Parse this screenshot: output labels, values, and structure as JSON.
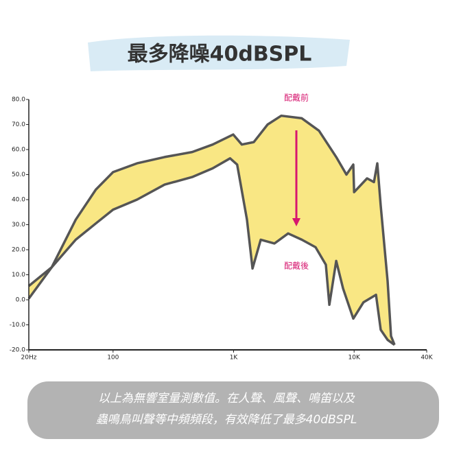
{
  "chart_data": {
    "type": "band",
    "title": "最多降噪40dBSPL",
    "series": [
      {
        "name": "配戴前",
        "color": "#555555",
        "x": [
          20,
          31,
          49,
          72,
          100,
          158,
          268,
          453,
          670,
          993,
          1170,
          1472,
          1914,
          2486,
          3680,
          5114,
          7100,
          8630,
          9840,
          10000,
          12800,
          14600,
          15570,
          16630,
          18960,
          20230,
          21630
        ],
        "values": [
          5.5,
          13,
          32,
          44,
          51,
          54.5,
          57,
          59,
          62,
          66,
          62,
          63,
          70,
          73.5,
          72.5,
          67.5,
          57,
          50,
          54,
          43,
          48.5,
          47,
          54.5,
          37.5,
          7.5,
          -14.5,
          -18
        ]
      },
      {
        "name": "配戴後",
        "color": "#555555",
        "x": [
          20,
          31,
          49,
          72,
          100,
          158,
          268,
          453,
          670,
          935,
          1070,
          1291,
          1435,
          1680,
          2183,
          2833,
          3680,
          4786,
          5826,
          6227,
          7100,
          8100,
          9840,
          11970,
          15180,
          16630,
          18960,
          21630
        ],
        "values": [
          0.5,
          13,
          24,
          30.5,
          36,
          40,
          46,
          49,
          52.5,
          56.5,
          54,
          32,
          12.5,
          24,
          22.5,
          26.5,
          24,
          21,
          14,
          -2,
          15.5,
          4.5,
          -7.5,
          -1,
          2,
          -12,
          -16,
          -18
        ]
      }
    ],
    "fill_color": "#f9e784",
    "arrow_color": "#d6176f",
    "log_x": true,
    "xlim": [
      20,
      40000
    ],
    "xticks": [
      {
        "value": 20,
        "label": "20Hz"
      },
      100,
      {
        "value": 1000,
        "label": "1K"
      },
      {
        "value": 10000,
        "label": "10K"
      },
      {
        "value": 40000,
        "label": "40K"
      }
    ],
    "ylim": [
      -20,
      80
    ],
    "yticks": [
      {
        "value": -20,
        "label": "-20.0"
      },
      {
        "value": -10,
        "label": "-10.0"
      },
      {
        "value": 0,
        "label": "0.0"
      },
      {
        "value": 10,
        "label": "10.0"
      },
      {
        "value": 20,
        "label": "20.0"
      },
      {
        "value": 30,
        "label": "30.0"
      },
      {
        "value": 40,
        "label": "40.0"
      },
      {
        "value": 50,
        "label": "50.0"
      },
      {
        "value": 60,
        "label": "60.0"
      },
      {
        "value": 70,
        "label": "70.0"
      },
      {
        "value": 80,
        "label": "80.0"
      }
    ],
    "caption": [
      "以上為無響室量測數值。在人聲、風聲、鳴笛以及",
      "蟲鳴鳥叫聲等中頻頻段，有效降低了最多40dBSPL"
    ]
  }
}
